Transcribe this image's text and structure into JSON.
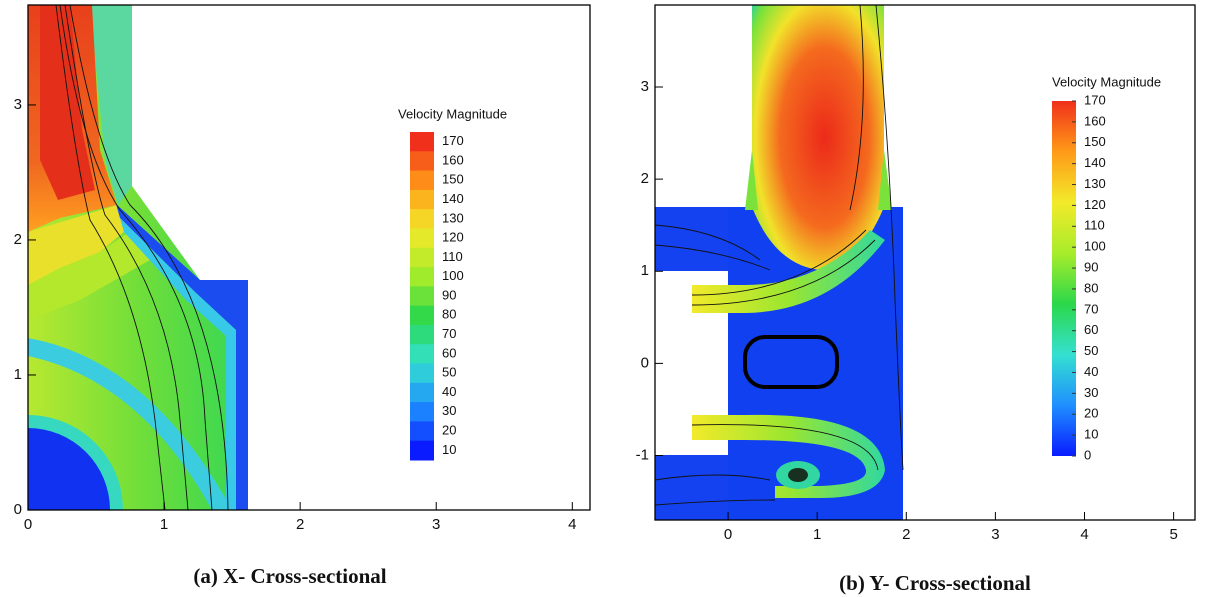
{
  "chart_data": [
    {
      "type": "contour",
      "caption": "(a) X- Cross-sectional",
      "xlim": [
        0,
        4.13
      ],
      "ylim": [
        0,
        3.74
      ],
      "xticks": [
        0,
        1,
        2,
        3,
        4
      ],
      "yticks": [
        0,
        1,
        2,
        3
      ],
      "colorbar": {
        "title": "Velocity Magnitude",
        "discrete": true,
        "levels": [
          170,
          160,
          150,
          140,
          130,
          120,
          110,
          100,
          90,
          80,
          70,
          60,
          50,
          40,
          30,
          20,
          10
        ],
        "colormap": [
          "#0a1cff",
          "#1f8fff",
          "#34e0d0",
          "#2bd84a",
          "#a8ec2a",
          "#f2ea2a",
          "#ff9a18",
          "#f0301a"
        ]
      }
    },
    {
      "type": "contour",
      "caption": "(b) Y- Cross-sectional",
      "xlim": [
        -0.82,
        5.24
      ],
      "ylim": [
        -1.7,
        3.89
      ],
      "xticks": [
        0,
        1,
        2,
        3,
        4,
        5
      ],
      "yticks": [
        -1,
        0,
        1,
        2,
        3
      ],
      "colorbar": {
        "title": "Velocity Magnitude",
        "discrete": false,
        "levels": [
          170,
          160,
          150,
          140,
          130,
          120,
          110,
          100,
          90,
          80,
          70,
          60,
          50,
          40,
          30,
          20,
          10,
          0
        ],
        "colormap": [
          "#0a1cff",
          "#1f8fff",
          "#34e0d0",
          "#2bd84a",
          "#a8ec2a",
          "#f2ea2a",
          "#ff9a18",
          "#f0301a"
        ]
      }
    }
  ]
}
